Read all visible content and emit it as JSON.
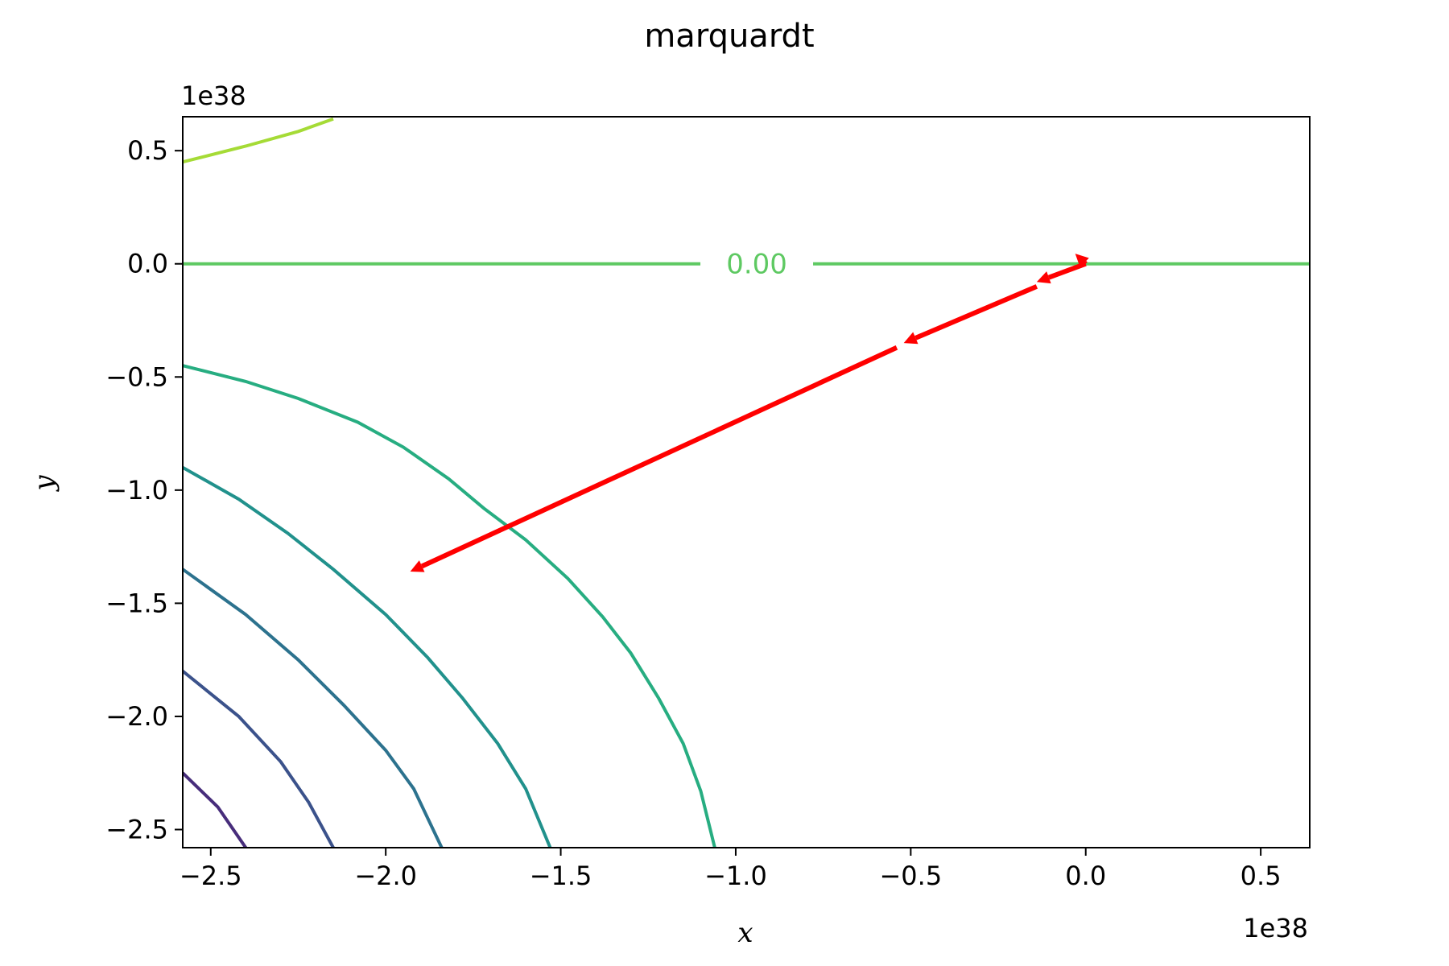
{
  "chart_data": {
    "type": "contour",
    "title": "marquardt",
    "xlabel": "x",
    "ylabel": "y",
    "x_offset_label": "1e38",
    "y_offset_label": "1e38",
    "xlim": [
      -2.58,
      0.64
    ],
    "ylim": [
      -2.58,
      0.65
    ],
    "x_ticks": [
      {
        "value": -2.5,
        "label": "−2.5"
      },
      {
        "value": -2.0,
        "label": "−2.0"
      },
      {
        "value": -1.5,
        "label": "−1.5"
      },
      {
        "value": -1.0,
        "label": "−1.0"
      },
      {
        "value": -0.5,
        "label": "−0.5"
      },
      {
        "value": 0.0,
        "label": "0.0"
      },
      {
        "value": 0.5,
        "label": "0.5"
      }
    ],
    "y_ticks": [
      {
        "value": 0.5,
        "label": "0.5"
      },
      {
        "value": 0.0,
        "label": "0.0"
      },
      {
        "value": -0.5,
        "label": "−0.5"
      },
      {
        "value": -1.0,
        "label": "−1.0"
      },
      {
        "value": -1.5,
        "label": "−1.5"
      },
      {
        "value": -2.0,
        "label": "−2.0"
      },
      {
        "value": -2.5,
        "label": "−2.5"
      }
    ],
    "grid": false,
    "contour_levels": [
      {
        "color": "#a5db36",
        "points": [
          [
            -2.58,
            0.45
          ],
          [
            -2.4,
            0.52
          ],
          [
            -2.25,
            0.585
          ],
          [
            -2.15,
            0.64
          ]
        ]
      },
      {
        "color": "#5ec962",
        "points": [
          [
            -2.58,
            0.0
          ],
          [
            0.64,
            0.0
          ]
        ],
        "label": "0.00",
        "label_x": -0.94
      },
      {
        "color": "#27ad81",
        "points": [
          [
            -2.58,
            -0.45
          ],
          [
            -2.4,
            -0.52
          ],
          [
            -2.25,
            -0.595
          ],
          [
            -2.08,
            -0.7
          ],
          [
            -1.95,
            -0.81
          ],
          [
            -1.82,
            -0.95
          ],
          [
            -1.72,
            -1.08
          ],
          [
            -1.6,
            -1.22
          ],
          [
            -1.48,
            -1.39
          ],
          [
            -1.38,
            -1.56
          ],
          [
            -1.3,
            -1.72
          ],
          [
            -1.22,
            -1.92
          ],
          [
            -1.15,
            -2.12
          ],
          [
            -1.1,
            -2.33
          ],
          [
            -1.06,
            -2.58
          ]
        ]
      },
      {
        "color": "#21918c",
        "points": [
          [
            -2.58,
            -0.9
          ],
          [
            -2.42,
            -1.04
          ],
          [
            -2.28,
            -1.19
          ],
          [
            -2.15,
            -1.35
          ],
          [
            -2.0,
            -1.55
          ],
          [
            -1.88,
            -1.74
          ],
          [
            -1.78,
            -1.92
          ],
          [
            -1.68,
            -2.12
          ],
          [
            -1.6,
            -2.32
          ],
          [
            -1.53,
            -2.58
          ]
        ]
      },
      {
        "color": "#2c728e",
        "points": [
          [
            -2.58,
            -1.35
          ],
          [
            -2.4,
            -1.55
          ],
          [
            -2.25,
            -1.75
          ],
          [
            -2.12,
            -1.95
          ],
          [
            -2.0,
            -2.15
          ],
          [
            -1.92,
            -2.32
          ],
          [
            -1.84,
            -2.58
          ]
        ]
      },
      {
        "color": "#3b528b",
        "points": [
          [
            -2.58,
            -1.8
          ],
          [
            -2.42,
            -2.0
          ],
          [
            -2.3,
            -2.2
          ],
          [
            -2.22,
            -2.38
          ],
          [
            -2.15,
            -2.58
          ]
        ]
      },
      {
        "color": "#472d7b",
        "points": [
          [
            -2.58,
            -2.25
          ],
          [
            -2.48,
            -2.4
          ],
          [
            -2.4,
            -2.58
          ]
        ]
      }
    ],
    "arrows": [
      {
        "color": "#ff0000",
        "from": [
          0.0,
          0.0
        ],
        "to": [
          -0.03,
          0.045
        ]
      },
      {
        "color": "#ff0000",
        "from": [
          0.0,
          0.0
        ],
        "to": [
          -0.14,
          -0.08
        ]
      },
      {
        "color": "#ff0000",
        "from": [
          -0.14,
          -0.1
        ],
        "to": [
          -0.52,
          -0.35
        ]
      },
      {
        "color": "#ff0000",
        "from": [
          -0.54,
          -0.37
        ],
        "to": [
          -1.93,
          -1.36
        ]
      }
    ]
  }
}
